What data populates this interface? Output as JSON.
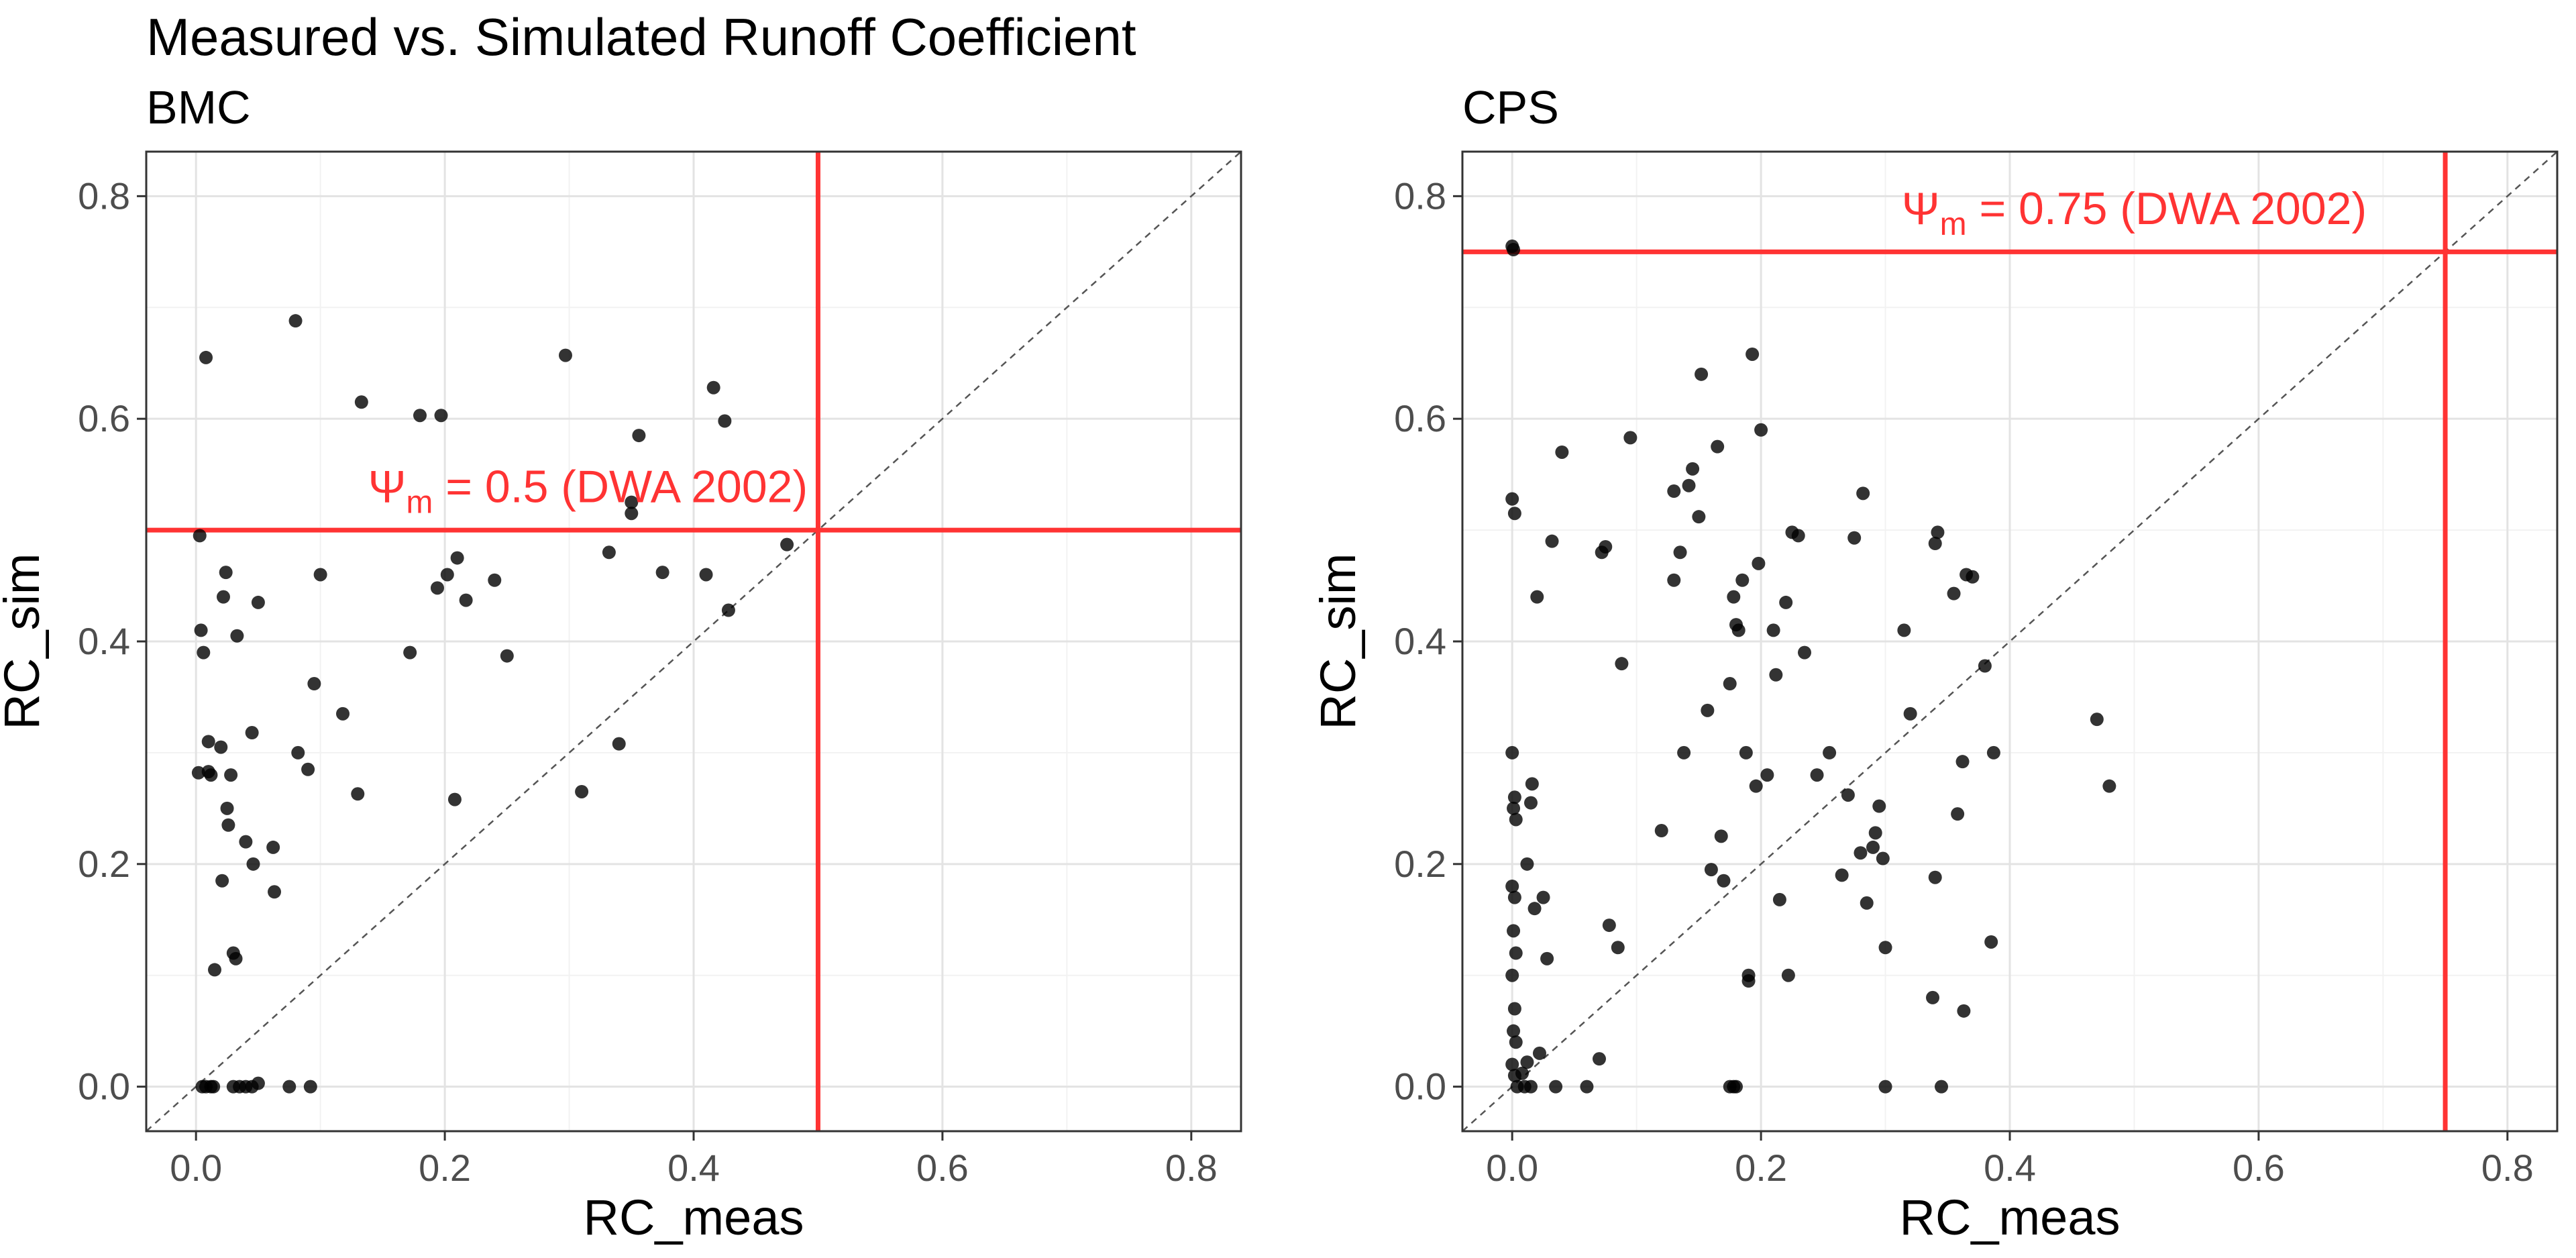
{
  "title": "Measured vs. Simulated Runoff Coefficient",
  "chart_data": [
    {
      "type": "scatter",
      "subtitle": "BMC",
      "xlabel": "RC_meas",
      "ylabel": "RC_sim",
      "xlim": [
        -0.04,
        0.84
      ],
      "ylim": [
        -0.04,
        0.84
      ],
      "xticks": [
        "0.0",
        "0.2",
        "0.4",
        "0.6",
        "0.8"
      ],
      "yticks": [
        "0.0",
        "0.2",
        "0.4",
        "0.6",
        "0.8"
      ],
      "grid": true,
      "reference_line": "y = x (dashed)",
      "threshold": 0.5,
      "threshold_color": "#ff3333",
      "annotation": {
        "symbol": "Ψ",
        "subscript": "m",
        "text": " = 0.5 (DWA 2002)"
      },
      "points": [
        [
          0.003,
          0.495
        ],
        [
          0.004,
          0.41
        ],
        [
          0.006,
          0.39
        ],
        [
          0.008,
          0.655
        ],
        [
          0.002,
          0.282
        ],
        [
          0.01,
          0.283
        ],
        [
          0.01,
          0.31
        ],
        [
          0.012,
          0.28
        ],
        [
          0.015,
          0.105
        ],
        [
          0.02,
          0.305
        ],
        [
          0.021,
          0.185
        ],
        [
          0.022,
          0.44
        ],
        [
          0.024,
          0.462
        ],
        [
          0.025,
          0.25
        ],
        [
          0.026,
          0.235
        ],
        [
          0.028,
          0.28
        ],
        [
          0.03,
          0.12
        ],
        [
          0.032,
          0.115
        ],
        [
          0.033,
          0.405
        ],
        [
          0.04,
          0.22
        ],
        [
          0.045,
          0.318
        ],
        [
          0.046,
          0.2
        ],
        [
          0.05,
          0.435
        ],
        [
          0.062,
          0.215
        ],
        [
          0.063,
          0.175
        ],
        [
          0.08,
          0.688
        ],
        [
          0.082,
          0.3
        ],
        [
          0.09,
          0.285
        ],
        [
          0.095,
          0.362
        ],
        [
          0.1,
          0.46
        ],
        [
          0.118,
          0.335
        ],
        [
          0.13,
          0.263
        ],
        [
          0.133,
          0.615
        ],
        [
          0.172,
          0.39
        ],
        [
          0.18,
          0.603
        ],
        [
          0.194,
          0.448
        ],
        [
          0.197,
          0.603
        ],
        [
          0.202,
          0.46
        ],
        [
          0.208,
          0.258
        ],
        [
          0.21,
          0.475
        ],
        [
          0.217,
          0.437
        ],
        [
          0.24,
          0.455
        ],
        [
          0.25,
          0.387
        ],
        [
          0.297,
          0.657
        ],
        [
          0.31,
          0.265
        ],
        [
          0.332,
          0.48
        ],
        [
          0.34,
          0.308
        ],
        [
          0.35,
          0.525
        ],
        [
          0.35,
          0.515
        ],
        [
          0.356,
          0.585
        ],
        [
          0.375,
          0.462
        ],
        [
          0.41,
          0.46
        ],
        [
          0.416,
          0.628
        ],
        [
          0.425,
          0.598
        ],
        [
          0.428,
          0.428
        ],
        [
          0.475,
          0.487
        ],
        [
          0.005,
          0.0
        ],
        [
          0.008,
          0.0
        ],
        [
          0.012,
          0.0
        ],
        [
          0.014,
          0.0
        ],
        [
          0.03,
          0.0
        ],
        [
          0.035,
          0.0
        ],
        [
          0.04,
          0.0
        ],
        [
          0.045,
          0.0
        ],
        [
          0.05,
          0.003
        ],
        [
          0.075,
          0.0
        ],
        [
          0.092,
          0.0
        ]
      ]
    },
    {
      "type": "scatter",
      "subtitle": "CPS",
      "xlabel": "RC_meas",
      "ylabel": "RC_sim",
      "xlim": [
        -0.04,
        0.84
      ],
      "ylim": [
        -0.04,
        0.84
      ],
      "xticks": [
        "0.0",
        "0.2",
        "0.4",
        "0.6",
        "0.8"
      ],
      "yticks": [
        "0.0",
        "0.2",
        "0.4",
        "0.6",
        "0.8"
      ],
      "grid": true,
      "reference_line": "y = x (dashed)",
      "threshold": 0.75,
      "threshold_color": "#ff3333",
      "annotation": {
        "symbol": "Ψ",
        "subscript": "m",
        "text": " = 0.75 (DWA 2002)"
      },
      "points": [
        [
          0.0,
          0.755
        ],
        [
          0.001,
          0.752
        ],
        [
          0.0,
          0.528
        ],
        [
          0.002,
          0.515
        ],
        [
          0.0,
          0.3
        ],
        [
          0.002,
          0.26
        ],
        [
          0.001,
          0.25
        ],
        [
          0.003,
          0.24
        ],
        [
          0.0,
          0.18
        ],
        [
          0.002,
          0.17
        ],
        [
          0.001,
          0.14
        ],
        [
          0.003,
          0.12
        ],
        [
          0.0,
          0.1
        ],
        [
          0.002,
          0.07
        ],
        [
          0.001,
          0.05
        ],
        [
          0.003,
          0.04
        ],
        [
          0.0,
          0.02
        ],
        [
          0.002,
          0.01
        ],
        [
          0.004,
          0.0
        ],
        [
          0.01,
          0.0
        ],
        [
          0.012,
          0.2
        ],
        [
          0.015,
          0.255
        ],
        [
          0.016,
          0.272
        ],
        [
          0.018,
          0.16
        ],
        [
          0.02,
          0.44
        ],
        [
          0.022,
          0.03
        ],
        [
          0.025,
          0.17
        ],
        [
          0.028,
          0.115
        ],
        [
          0.032,
          0.49
        ],
        [
          0.04,
          0.57
        ],
        [
          0.035,
          0.0
        ],
        [
          0.012,
          0.022
        ],
        [
          0.008,
          0.012
        ],
        [
          0.015,
          0.0
        ],
        [
          0.06,
          0.0
        ],
        [
          0.072,
          0.48
        ],
        [
          0.075,
          0.485
        ],
        [
          0.078,
          0.145
        ],
        [
          0.085,
          0.125
        ],
        [
          0.088,
          0.38
        ],
        [
          0.095,
          0.583
        ],
        [
          0.07,
          0.025
        ],
        [
          0.12,
          0.23
        ],
        [
          0.13,
          0.535
        ],
        [
          0.13,
          0.455
        ],
        [
          0.135,
          0.48
        ],
        [
          0.138,
          0.3
        ],
        [
          0.142,
          0.54
        ],
        [
          0.145,
          0.555
        ],
        [
          0.15,
          0.512
        ],
        [
          0.152,
          0.64
        ],
        [
          0.157,
          0.338
        ],
        [
          0.16,
          0.195
        ],
        [
          0.165,
          0.575
        ],
        [
          0.168,
          0.225
        ],
        [
          0.17,
          0.185
        ],
        [
          0.175,
          0.362
        ],
        [
          0.178,
          0.44
        ],
        [
          0.18,
          0.415
        ],
        [
          0.182,
          0.41
        ],
        [
          0.185,
          0.455
        ],
        [
          0.188,
          0.3
        ],
        [
          0.19,
          0.1
        ],
        [
          0.19,
          0.095
        ],
        [
          0.193,
          0.658
        ],
        [
          0.196,
          0.27
        ],
        [
          0.198,
          0.47
        ],
        [
          0.2,
          0.59
        ],
        [
          0.205,
          0.28
        ],
        [
          0.21,
          0.41
        ],
        [
          0.212,
          0.37
        ],
        [
          0.215,
          0.168
        ],
        [
          0.22,
          0.435
        ],
        [
          0.222,
          0.1
        ],
        [
          0.225,
          0.498
        ],
        [
          0.23,
          0.495
        ],
        [
          0.235,
          0.39
        ],
        [
          0.245,
          0.28
        ],
        [
          0.255,
          0.3
        ],
        [
          0.265,
          0.19
        ],
        [
          0.27,
          0.262
        ],
        [
          0.275,
          0.493
        ],
        [
          0.28,
          0.21
        ],
        [
          0.282,
          0.533
        ],
        [
          0.285,
          0.165
        ],
        [
          0.29,
          0.215
        ],
        [
          0.292,
          0.228
        ],
        [
          0.295,
          0.252
        ],
        [
          0.298,
          0.205
        ],
        [
          0.3,
          0.125
        ],
        [
          0.3,
          0.0
        ],
        [
          0.315,
          0.41
        ],
        [
          0.32,
          0.335
        ],
        [
          0.34,
          0.488
        ],
        [
          0.342,
          0.498
        ],
        [
          0.338,
          0.08
        ],
        [
          0.34,
          0.188
        ],
        [
          0.345,
          0.0
        ],
        [
          0.355,
          0.443
        ],
        [
          0.358,
          0.245
        ],
        [
          0.362,
          0.292
        ],
        [
          0.363,
          0.068
        ],
        [
          0.365,
          0.46
        ],
        [
          0.37,
          0.458
        ],
        [
          0.38,
          0.378
        ],
        [
          0.385,
          0.13
        ],
        [
          0.387,
          0.3
        ],
        [
          0.47,
          0.33
        ],
        [
          0.48,
          0.27
        ],
        [
          0.175,
          0.0
        ],
        [
          0.178,
          0.0
        ],
        [
          0.18,
          0.0
        ]
      ]
    }
  ]
}
